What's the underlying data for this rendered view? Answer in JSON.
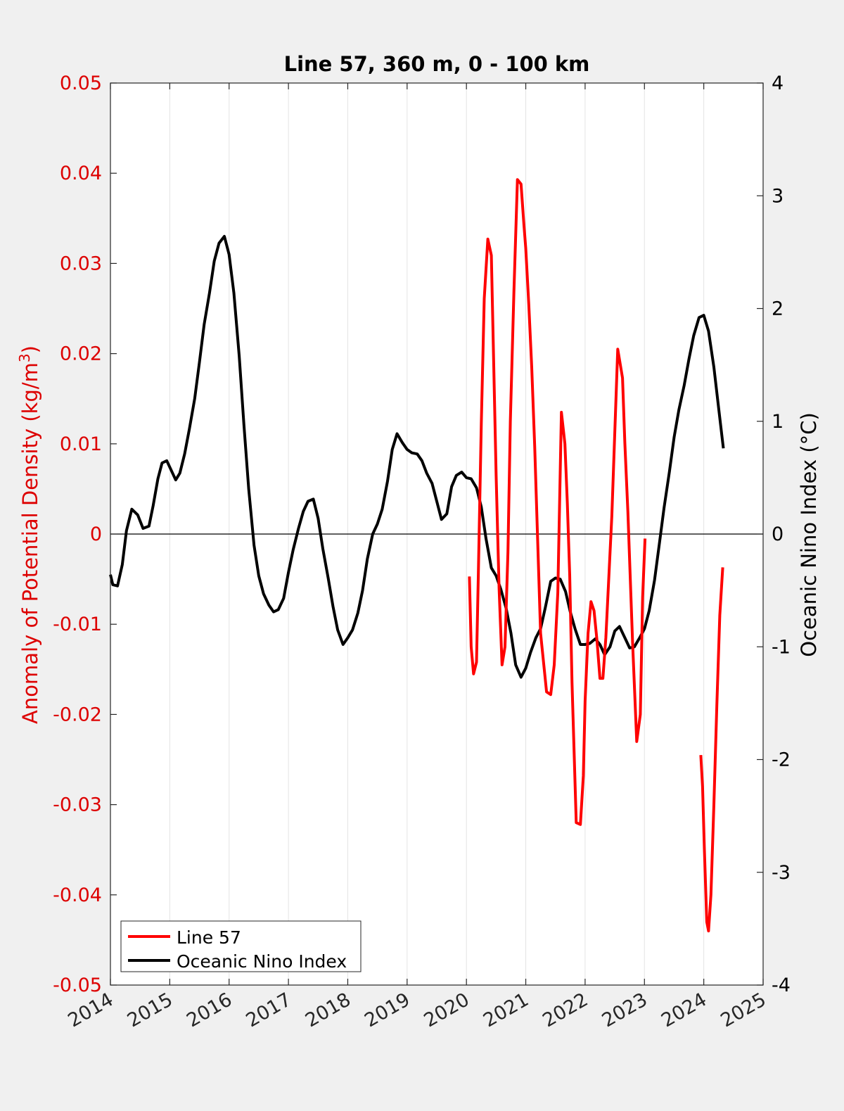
{
  "chart_data": {
    "type": "line",
    "title": "Line 57, 360 m, 0 - 100 km",
    "xlabel": "",
    "ylabel_left": "Anomaly of Potential Density (kg/m",
    "ylabel_left_sup": "3",
    "ylabel_left_close": ")",
    "ylabel_right": "Oceanic Nino Index (°C)",
    "xlim": [
      2014,
      2025
    ],
    "ylim_left": [
      -0.05,
      0.05
    ],
    "ylim_right": [
      -4,
      4
    ],
    "x_ticks": [
      "2014",
      "2015",
      "2016",
      "2017",
      "2018",
      "2019",
      "2020",
      "2021",
      "2022",
      "2023",
      "2024",
      "2025"
    ],
    "y_left_ticks": [
      "0.05",
      "0.04",
      "0.03",
      "0.02",
      "0.01",
      "0",
      "-0.01",
      "-0.02",
      "-0.03",
      "-0.04",
      "-0.05"
    ],
    "y_right_ticks": [
      "4",
      "3",
      "2",
      "1",
      "0",
      "-1",
      "-2",
      "-3",
      "-4"
    ],
    "grid": "vertical",
    "legend_position": "bottom-left",
    "colors": {
      "line57": "#ff0000",
      "oni": "#000000",
      "left_axis": "#dd0000",
      "right_axis": "#000000"
    },
    "series": [
      {
        "name": "Line 57",
        "axis": "left",
        "segments": [
          {
            "x": [
              2020.05,
              2020.08,
              2020.12,
              2020.17,
              2020.2,
              2020.25,
              2020.3,
              2020.36,
              2020.42,
              2020.46,
              2020.5,
              2020.55,
              2020.6,
              2020.65,
              2020.7,
              2020.74,
              2020.8,
              2020.86,
              2020.92,
              2020.97,
              2021.0,
              2021.05,
              2021.1,
              2021.15,
              2021.25,
              2021.35,
              2021.42,
              2021.48,
              2021.54,
              2021.6,
              2021.66,
              2021.7,
              2021.74,
              2021.78,
              2021.85,
              2021.92,
              2021.97,
              2022.0,
              2022.05,
              2022.1,
              2022.15,
              2022.2,
              2022.25,
              2022.3,
              2022.35,
              2022.45,
              2022.55,
              2022.63,
              2022.67,
              2022.72,
              2022.8,
              2022.87,
              2022.93,
              2022.97,
              2023.01
            ],
            "y": [
              -0.0047,
              -0.0125,
              -0.0155,
              -0.0142,
              -0.0045,
              0.0122,
              0.0261,
              0.0327,
              0.0309,
              0.0187,
              0.0065,
              -0.006,
              -0.0145,
              -0.0125,
              -0.002,
              0.0125,
              0.0269,
              0.0393,
              0.0388,
              0.0342,
              0.0317,
              0.0255,
              0.0185,
              0.0098,
              -0.011,
              -0.0175,
              -0.0178,
              -0.0145,
              -0.0065,
              0.0135,
              0.01,
              0.0035,
              -0.0045,
              -0.0165,
              -0.032,
              -0.0322,
              -0.0268,
              -0.0185,
              -0.011,
              -0.0075,
              -0.0085,
              -0.0118,
              -0.016,
              -0.016,
              -0.0115,
              0.002,
              0.0205,
              0.0173,
              0.0101,
              0.0025,
              -0.012,
              -0.023,
              -0.02,
              -0.007,
              -0.0005
            ]
          },
          {
            "x": [
              2023.95,
              2023.98,
              2024.01,
              2024.05,
              2024.08,
              2024.12,
              2024.17,
              2024.22,
              2024.27,
              2024.32
            ],
            "y": [
              -0.0245,
              -0.028,
              -0.035,
              -0.043,
              -0.044,
              -0.04,
              -0.03,
              -0.019,
              -0.009,
              -0.0037
            ]
          }
        ]
      },
      {
        "name": "Oceanic Nino Index",
        "axis": "right",
        "segments": [
          {
            "x": [
              2014.0,
              2014.04,
              2014.12,
              2014.2,
              2014.27,
              2014.36,
              2014.46,
              2014.55,
              2014.65,
              2014.72,
              2014.8,
              2014.87,
              2014.95,
              2015.03,
              2015.1,
              2015.17,
              2015.25,
              2015.33,
              2015.42,
              2015.5,
              2015.58,
              2015.67,
              2015.75,
              2015.83,
              2015.92,
              2016.0,
              2016.08,
              2016.17,
              2016.25,
              2016.33,
              2016.42,
              2016.5,
              2016.58,
              2016.67,
              2016.75,
              2016.83,
              2016.92,
              2017.0,
              2017.08,
              2017.17,
              2017.25,
              2017.33,
              2017.42,
              2017.5,
              2017.58,
              2017.67,
              2017.75,
              2017.83,
              2017.92,
              2018.0,
              2018.08,
              2018.17,
              2018.25,
              2018.33,
              2018.42,
              2018.5,
              2018.58,
              2018.67,
              2018.75,
              2018.83,
              2018.92,
              2019.0,
              2019.08,
              2019.17,
              2019.25,
              2019.33,
              2019.42,
              2019.5,
              2019.58,
              2019.67,
              2019.75,
              2019.83,
              2019.92,
              2020.0,
              2020.08,
              2020.17,
              2020.25,
              2020.33,
              2020.42,
              2020.5,
              2020.58,
              2020.67,
              2020.75,
              2020.83,
              2020.92,
              2021.0,
              2021.08,
              2021.17,
              2021.25,
              2021.33,
              2021.42,
              2021.5,
              2021.58,
              2021.67,
              2021.75,
              2021.83,
              2021.92,
              2022.0,
              2022.08,
              2022.17,
              2022.25,
              2022.33,
              2022.42,
              2022.5,
              2022.58,
              2022.67,
              2022.75,
              2022.83,
              2022.92,
              2023.0,
              2023.08,
              2023.17,
              2023.25,
              2023.33,
              2023.42,
              2023.5,
              2023.58,
              2023.67,
              2023.75,
              2023.83,
              2023.92,
              2024.0,
              2024.08,
              2024.17,
              2024.25,
              2024.33
            ],
            "y": [
              -0.36,
              -0.45,
              -0.46,
              -0.27,
              0.03,
              0.22,
              0.17,
              0.05,
              0.07,
              0.25,
              0.49,
              0.63,
              0.65,
              0.56,
              0.48,
              0.54,
              0.71,
              0.93,
              1.2,
              1.52,
              1.86,
              2.14,
              2.42,
              2.58,
              2.64,
              2.48,
              2.14,
              1.58,
              0.97,
              0.4,
              -0.1,
              -0.37,
              -0.53,
              -0.63,
              -0.69,
              -0.67,
              -0.57,
              -0.34,
              -0.14,
              0.05,
              0.2,
              0.29,
              0.31,
              0.14,
              -0.13,
              -0.39,
              -0.64,
              -0.85,
              -0.98,
              -0.92,
              -0.85,
              -0.7,
              -0.5,
              -0.22,
              0.0,
              0.09,
              0.22,
              0.47,
              0.75,
              0.89,
              0.81,
              0.75,
              0.72,
              0.71,
              0.65,
              0.54,
              0.45,
              0.29,
              0.13,
              0.18,
              0.42,
              0.52,
              0.55,
              0.5,
              0.49,
              0.41,
              0.24,
              -0.04,
              -0.3,
              -0.37,
              -0.49,
              -0.66,
              -0.88,
              -1.16,
              -1.27,
              -1.19,
              -1.05,
              -0.92,
              -0.84,
              -0.65,
              -0.42,
              -0.39,
              -0.4,
              -0.51,
              -0.69,
              -0.84,
              -0.98,
              -0.98,
              -0.97,
              -0.93,
              -0.98,
              -1.07,
              -1.0,
              -0.86,
              -0.82,
              -0.92,
              -1.01,
              -1.0,
              -0.92,
              -0.84,
              -0.68,
              -0.41,
              -0.09,
              0.23,
              0.55,
              0.86,
              1.1,
              1.32,
              1.55,
              1.76,
              1.92,
              1.94,
              1.8,
              1.48,
              1.12,
              0.76
            ]
          }
        ]
      }
    ]
  }
}
